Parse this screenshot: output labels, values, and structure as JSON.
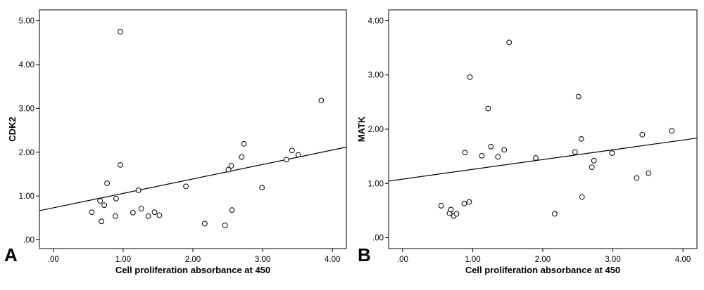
{
  "chart_data": [
    {
      "panel_label": "A",
      "type": "scatter",
      "xlabel": "Cell proliferation absorbance at 450",
      "ylabel": "CDK2",
      "xlim": [
        -0.2,
        4.2
      ],
      "ylim": [
        -0.2,
        5.25
      ],
      "x_ticks": [
        0,
        1,
        2,
        3,
        4
      ],
      "x_tick_labels": [
        ".00",
        "1.00",
        "2.00",
        "3.00",
        "4.00"
      ],
      "y_ticks": [
        0,
        1,
        2,
        3,
        4,
        5
      ],
      "y_tick_labels": [
        ".00",
        "1.00",
        "2.00",
        "3.00",
        "4.00",
        "5.00"
      ],
      "grid": false,
      "fit_line": {
        "intercept": 0.73,
        "slope": 0.33
      },
      "points": [
        {
          "x": 0.55,
          "y": 0.63
        },
        {
          "x": 0.67,
          "y": 0.89
        },
        {
          "x": 0.69,
          "y": 0.42
        },
        {
          "x": 0.73,
          "y": 0.79
        },
        {
          "x": 0.77,
          "y": 1.29
        },
        {
          "x": 0.89,
          "y": 0.54
        },
        {
          "x": 0.9,
          "y": 0.94
        },
        {
          "x": 0.96,
          "y": 1.71
        },
        {
          "x": 0.96,
          "y": 4.75
        },
        {
          "x": 1.14,
          "y": 0.62
        },
        {
          "x": 1.22,
          "y": 1.13
        },
        {
          "x": 1.26,
          "y": 0.71
        },
        {
          "x": 1.36,
          "y": 0.54
        },
        {
          "x": 1.45,
          "y": 0.63
        },
        {
          "x": 1.52,
          "y": 0.56
        },
        {
          "x": 1.9,
          "y": 1.22
        },
        {
          "x": 2.17,
          "y": 0.37
        },
        {
          "x": 2.46,
          "y": 0.33
        },
        {
          "x": 2.51,
          "y": 1.6
        },
        {
          "x": 2.55,
          "y": 1.69
        },
        {
          "x": 2.56,
          "y": 0.68
        },
        {
          "x": 2.7,
          "y": 1.89
        },
        {
          "x": 2.73,
          "y": 2.19
        },
        {
          "x": 2.99,
          "y": 1.19
        },
        {
          "x": 3.34,
          "y": 1.83
        },
        {
          "x": 3.42,
          "y": 2.04
        },
        {
          "x": 3.51,
          "y": 1.94
        },
        {
          "x": 3.84,
          "y": 3.18
        }
      ]
    },
    {
      "panel_label": "B",
      "type": "scatter",
      "xlabel": "Cell proliferation absorbance at 450",
      "ylabel": "MATK",
      "xlim": [
        -0.2,
        4.2
      ],
      "ylim": [
        -0.2,
        4.2
      ],
      "x_ticks": [
        0,
        1,
        2,
        3,
        4
      ],
      "x_tick_labels": [
        ".00",
        "1.00",
        "2.00",
        "3.00",
        "4.00"
      ],
      "y_ticks": [
        0,
        1,
        2,
        3,
        4
      ],
      "y_tick_labels": [
        ".00",
        "1.00",
        "2.00",
        "3.00",
        "4.00"
      ],
      "grid": false,
      "fit_line": {
        "intercept": 1.08,
        "slope": 0.18
      },
      "points": [
        {
          "x": 0.55,
          "y": 0.59
        },
        {
          "x": 0.67,
          "y": 0.45
        },
        {
          "x": 0.69,
          "y": 0.52
        },
        {
          "x": 0.73,
          "y": 0.4
        },
        {
          "x": 0.77,
          "y": 0.44
        },
        {
          "x": 0.88,
          "y": 0.63
        },
        {
          "x": 0.89,
          "y": 1.57
        },
        {
          "x": 0.95,
          "y": 0.66
        },
        {
          "x": 0.96,
          "y": 2.96
        },
        {
          "x": 1.13,
          "y": 1.51
        },
        {
          "x": 1.22,
          "y": 2.38
        },
        {
          "x": 1.26,
          "y": 1.68
        },
        {
          "x": 1.36,
          "y": 1.49
        },
        {
          "x": 1.45,
          "y": 1.62
        },
        {
          "x": 1.52,
          "y": 3.6
        },
        {
          "x": 1.9,
          "y": 1.47
        },
        {
          "x": 2.17,
          "y": 0.44
        },
        {
          "x": 2.46,
          "y": 1.58
        },
        {
          "x": 2.51,
          "y": 2.6
        },
        {
          "x": 2.55,
          "y": 1.82
        },
        {
          "x": 2.56,
          "y": 0.75
        },
        {
          "x": 2.7,
          "y": 1.3
        },
        {
          "x": 2.73,
          "y": 1.42
        },
        {
          "x": 2.99,
          "y": 1.56
        },
        {
          "x": 3.34,
          "y": 1.1
        },
        {
          "x": 3.42,
          "y": 1.9
        },
        {
          "x": 3.51,
          "y": 1.19
        },
        {
          "x": 3.84,
          "y": 1.97
        }
      ]
    }
  ]
}
